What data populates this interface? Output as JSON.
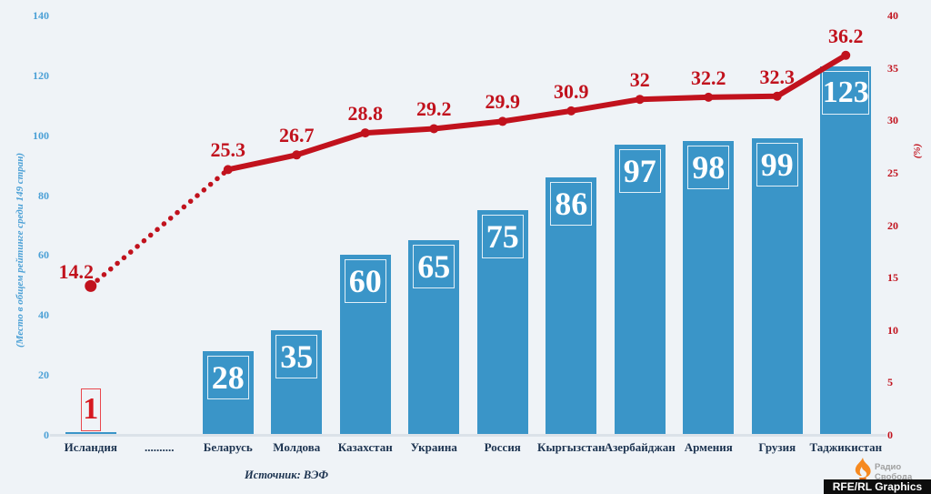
{
  "chart_data": {
    "type": "bar",
    "title": "",
    "categories": [
      "Исландия",
      "..........",
      "Беларусь",
      "Молдова",
      "Казахстан",
      "Украина",
      "Россия",
      "Кыргызстан",
      "Азербайджан",
      "Армения",
      "Грузия",
      "Таджикистан"
    ],
    "series": [
      {
        "name": "Место в общем рейтинге среди 149 стран",
        "type": "bar",
        "axis": "left",
        "values": [
          1,
          null,
          28,
          35,
          60,
          65,
          75,
          86,
          97,
          98,
          99,
          123
        ]
      },
      {
        "name": "Процент (%)",
        "type": "line",
        "axis": "right",
        "values": [
          14.2,
          null,
          25.3,
          26.7,
          28.8,
          29.2,
          29.9,
          30.9,
          32,
          32.2,
          32.3,
          36.2
        ],
        "first_segment_style": "dotted"
      }
    ],
    "left_axis": {
      "label": "(Место в общем рейтинге среди 149 стран)",
      "range": [
        0,
        140
      ],
      "ticks": [
        0,
        20,
        40,
        60,
        80,
        100,
        120,
        140
      ]
    },
    "right_axis": {
      "label": "(%)",
      "range": [
        0,
        40
      ],
      "ticks": [
        0,
        5,
        10,
        15,
        20,
        25,
        30,
        35,
        40
      ]
    },
    "grid": false,
    "legend": false
  },
  "footer": {
    "source": "Источник: ВЭФ"
  },
  "branding": {
    "logo": "torch-icon",
    "radio_line1": "Радио",
    "radio_line2": "Свобода",
    "credit": "RFE/RL Graphics"
  },
  "colors": {
    "background": "#eff3f7",
    "bar": "#3a95c8",
    "line": "#c1121d",
    "left_axis_text": "#4ba0d6",
    "x_label_text": "#1c3350",
    "rank1_border": "#e9474d",
    "flame_orange": "#f6891f"
  }
}
